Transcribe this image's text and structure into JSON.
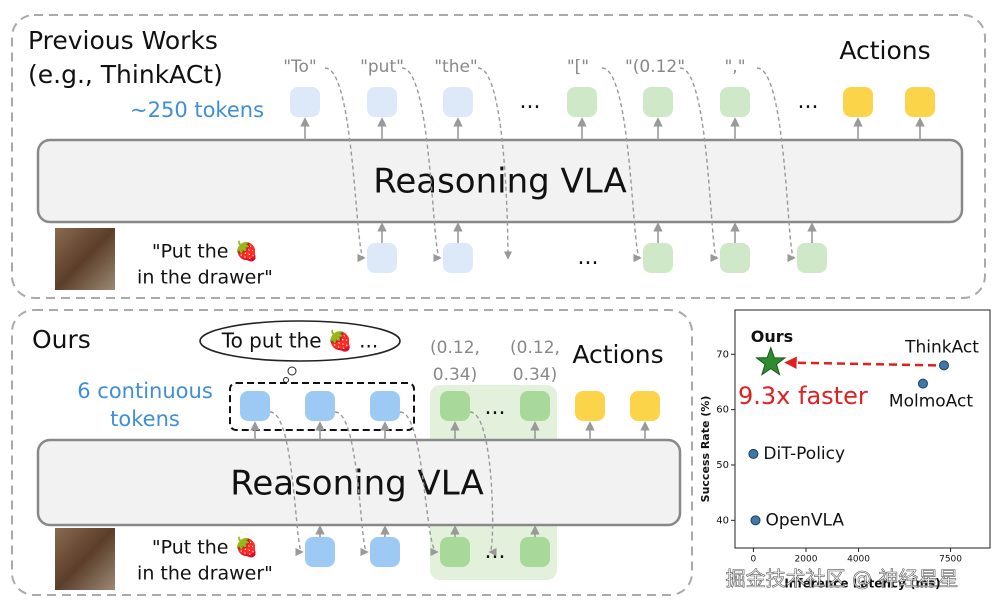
{
  "previous": {
    "title": "Previous Works",
    "subtitle": "(e.g., ThinkACt)",
    "token_count": "~250 tokens",
    "token_labels": [
      "\"To\"",
      "\"put\"",
      "\"the\"",
      "\"[\"",
      "\"(0.12\"",
      "\",\""
    ],
    "ellipsis": "...",
    "actions": "Actions",
    "model": "Reasoning VLA",
    "instruction": [
      "\"Put the 🍓",
      "in the drawer\""
    ]
  },
  "ours": {
    "title": "Ours",
    "thought": "To put the 🍓 ...",
    "token_count": [
      "6 continuous",
      "tokens"
    ],
    "action_labels": [
      [
        "(0.12,",
        "0.34)"
      ],
      [
        "(0.12,",
        "0.34)"
      ]
    ],
    "ellipsis": "...",
    "actions": "Actions",
    "model": "Reasoning VLA",
    "instruction": [
      "\"Put the 🍓",
      "in the drawer\""
    ]
  },
  "chart_data": {
    "type": "scatter",
    "x_label": "Inference Latency (ms)",
    "y_label": "Success Rate (%)",
    "xlim": [
      -700,
      9000
    ],
    "ylim": [
      35,
      78
    ],
    "xticks": [
      0,
      2000,
      4000,
      7500
    ],
    "yticks": [
      40,
      50,
      60,
      70
    ],
    "annotation": "9.3x faster",
    "series": [
      {
        "name": "Ours",
        "color": "#2e8b2e",
        "marker": "star",
        "x": [
          660
        ],
        "values": [
          68.5
        ]
      },
      {
        "name": "ThinkAct",
        "color": "#3f78a8",
        "marker": "circle",
        "x": [
          7250
        ],
        "values": [
          68
        ]
      },
      {
        "name": "MolmoAct",
        "color": "#3f78a8",
        "marker": "circle",
        "x": [
          6450
        ],
        "values": [
          64.7
        ]
      },
      {
        "name": "DiT-Policy",
        "color": "#3f78a8",
        "marker": "circle",
        "x": [
          0
        ],
        "values": [
          52
        ]
      },
      {
        "name": "OpenVLA",
        "color": "#3f78a8",
        "marker": "circle",
        "x": [
          80
        ],
        "values": [
          40
        ]
      }
    ]
  },
  "watermark": "掘金技术社区 @ 神经星星"
}
